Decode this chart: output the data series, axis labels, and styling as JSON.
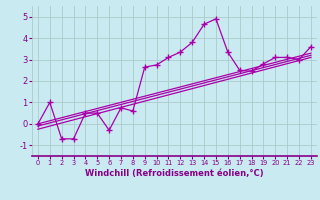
{
  "xlabel": "Windchill (Refroidissement éolien,°C)",
  "xlim": [
    -0.5,
    23.5
  ],
  "ylim": [
    -1.5,
    5.5
  ],
  "yticks": [
    -1,
    0,
    1,
    2,
    3,
    4,
    5
  ],
  "xticks": [
    0,
    1,
    2,
    3,
    4,
    5,
    6,
    7,
    8,
    9,
    10,
    11,
    12,
    13,
    14,
    15,
    16,
    17,
    18,
    19,
    20,
    21,
    22,
    23
  ],
  "bg_color": "#c8eaf0",
  "line_color": "#aa00aa",
  "grid_color": "#aacccc",
  "main_line_x": [
    0,
    1,
    2,
    3,
    4,
    5,
    6,
    7,
    8,
    9,
    10,
    11,
    12,
    13,
    14,
    15,
    16,
    17,
    18,
    19,
    20,
    21,
    22,
    23
  ],
  "main_line_y": [
    0.0,
    1.0,
    -0.7,
    -0.7,
    0.5,
    0.5,
    -0.3,
    0.75,
    0.6,
    2.65,
    2.75,
    3.1,
    3.35,
    3.8,
    4.65,
    4.9,
    3.35,
    2.5,
    2.45,
    2.8,
    3.1,
    3.1,
    3.0,
    3.6
  ],
  "linear1_y0": 0.0,
  "linear1_y1": 3.3,
  "linear2_y0": -0.1,
  "linear2_y1": 3.2,
  "linear3_y0": -0.25,
  "linear3_y1": 3.1,
  "font_color": "#880088",
  "xlabel_fontsize": 6.0,
  "xtick_fontsize": 4.8,
  "ytick_fontsize": 6.0
}
